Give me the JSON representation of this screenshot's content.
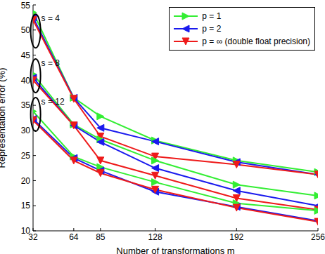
{
  "chart_data": {
    "type": "line",
    "x_label": "Number of transformations m",
    "y_label": "Representation error (%)",
    "x": [
      32,
      64,
      85,
      128,
      192,
      256
    ],
    "xlim": [
      32,
      256
    ],
    "xticks": [
      32,
      64,
      85,
      128,
      192,
      256
    ],
    "ylim": [
      10,
      55
    ],
    "yticks": [
      10,
      15,
      20,
      25,
      30,
      35,
      40,
      45,
      50,
      55
    ],
    "grid": false,
    "legend": "upper right",
    "series": [
      {
        "name": "p = 1",
        "color": "#33ee33",
        "marker": "triangle-right",
        "values": [
          53.5,
          36.5,
          32.8,
          28.0,
          24.0,
          21.7
        ]
      },
      {
        "name": "p = 2",
        "color": "#1a1aee",
        "marker": "triangle-left",
        "values": [
          52.5,
          36.5,
          30.5,
          27.8,
          23.7,
          21.2
        ]
      },
      {
        "name": "p = ∞ (double float precision)",
        "color": "#ee1a1a",
        "marker": "triangle-down",
        "values": [
          52.0,
          36.3,
          28.8,
          24.8,
          23.2,
          21.2
        ]
      },
      {
        "name": "p = 1",
        "color": "#33ee33",
        "marker": "triangle-right",
        "values": [
          41.2,
          31.2,
          28.2,
          24.0,
          19.2,
          17.0
        ]
      },
      {
        "name": "p = 2",
        "color": "#1a1aee",
        "marker": "triangle-left",
        "values": [
          40.5,
          31.0,
          27.7,
          22.5,
          18.0,
          15.0
        ]
      },
      {
        "name": "p = ∞ (double float precision)",
        "color": "#ee1a1a",
        "marker": "triangle-down",
        "values": [
          40.0,
          31.0,
          24.0,
          21.0,
          16.5,
          14.2
        ]
      },
      {
        "name": "p = 1",
        "color": "#33ee33",
        "marker": "triangle-right",
        "values": [
          33.8,
          24.8,
          22.7,
          19.7,
          15.5,
          14.0
        ]
      },
      {
        "name": "p = 2",
        "color": "#1a1aee",
        "marker": "triangle-left",
        "values": [
          32.3,
          24.5,
          22.0,
          17.8,
          14.8,
          12.0
        ]
      },
      {
        "name": "p = ∞ (double float precision)",
        "color": "#ee1a1a",
        "marker": "triangle-down",
        "values": [
          32.0,
          24.0,
          21.5,
          18.2,
          14.6,
          11.8
        ]
      }
    ],
    "annotations": [
      {
        "text": "s = 4",
        "x": 34,
        "y": 49.8
      },
      {
        "text": "s = 8",
        "x": 34,
        "y": 40.9
      },
      {
        "text": "s = 12",
        "x": 34,
        "y": 33.2
      }
    ]
  }
}
